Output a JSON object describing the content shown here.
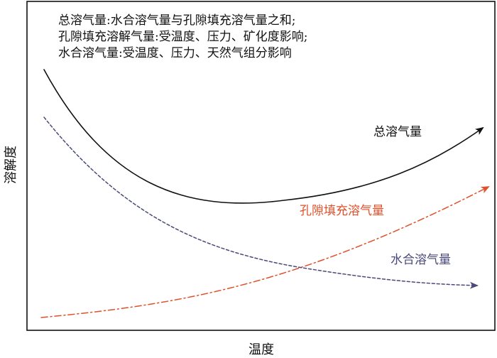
{
  "notes": [
    "总溶气量:水合溶气量与孔隙填充溶气量之和;",
    "孔隙填充溶解气量:受温度、压力、矿化度影响;",
    "水合溶气量:受温度、压力、天然气组分影响"
  ],
  "axes": {
    "x_label": "温度",
    "y_label": "溶解度"
  },
  "curves": {
    "total": {
      "label": "总溶气量",
      "color": "#111111",
      "style": "solid"
    },
    "pore_filling": {
      "label": "孔隙填充溶气量",
      "color": "#e0502a",
      "style": "dash-dot"
    },
    "hydrate": {
      "label": "水合溶气量",
      "color": "#4a4a7a",
      "style": "dashed"
    }
  }
}
